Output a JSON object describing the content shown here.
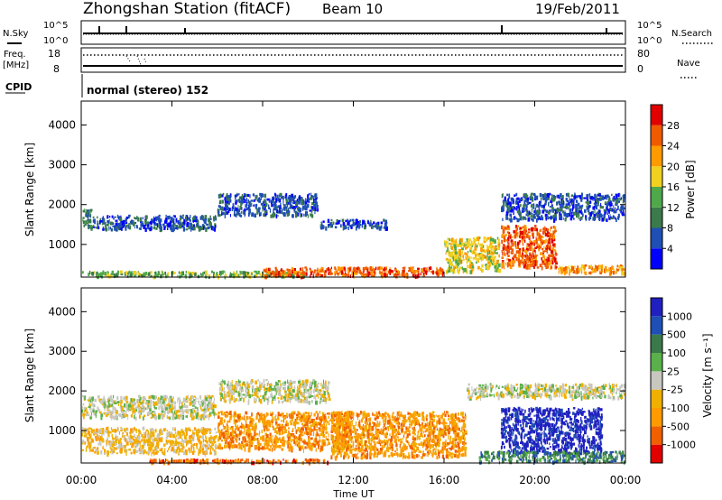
{
  "header": {
    "title": "Zhongshan Station (fitACF)",
    "beam": "Beam 10",
    "date": "19/Feb/2011"
  },
  "status": {
    "nsky_label": "N.Sky",
    "nsky_ticks": [
      "10^5",
      "10^0"
    ],
    "nsearch_label": "N.Search",
    "nsearch_ticks": [
      "10^5",
      "10^0"
    ],
    "freq_label": "Freq.",
    "freq_unit": "[MHz]",
    "freq_ticks": [
      "18",
      "8"
    ],
    "nave_label": "Nave",
    "nave_ticks": [
      "80",
      "0"
    ],
    "cpid_label": "CPID",
    "cpid_value": "normal (stereo) 152"
  },
  "chart_data": [
    {
      "type": "heatmap",
      "name": "power",
      "ylabel": "Slant Range [km]",
      "yticks": [
        "4000",
        "3000",
        "2000",
        "1000"
      ],
      "ylim": [
        180,
        4600
      ],
      "xlim": [
        0,
        24
      ],
      "colorbar": {
        "label": "Power [dB]",
        "ticks": [
          "28",
          "24",
          "20",
          "16",
          "12",
          "8",
          "4"
        ],
        "colors": [
          "#0000ff",
          "#1f4fb4",
          "#3b7a4a",
          "#4fa84a",
          "#f0d020",
          "#ff9a00",
          "#f05a00",
          "#e00000"
        ]
      },
      "regions": [
        {
          "t": [
            0.0,
            0.5
          ],
          "r": [
            1400,
            1900
          ],
          "level": 2
        },
        {
          "t": [
            0.5,
            6.0
          ],
          "r": [
            1350,
            1750
          ],
          "level": 1
        },
        {
          "t": [
            6.0,
            10.5
          ],
          "r": [
            1700,
            2300
          ],
          "level": 1
        },
        {
          "t": [
            10.5,
            13.5
          ],
          "r": [
            1400,
            1650
          ],
          "level": 1
        },
        {
          "t": [
            0.0,
            10.0
          ],
          "r": [
            180,
            350
          ],
          "level": 3
        },
        {
          "t": [
            8.0,
            16.0
          ],
          "r": [
            180,
            450
          ],
          "level": 6
        },
        {
          "t": [
            16.0,
            18.5
          ],
          "r": [
            300,
            1200
          ],
          "level": 4
        },
        {
          "t": [
            18.5,
            24.0
          ],
          "r": [
            1600,
            2300
          ],
          "level": 1
        },
        {
          "t": [
            18.5,
            21.0
          ],
          "r": [
            400,
            1500
          ],
          "level": 6
        },
        {
          "t": [
            21.0,
            24.0
          ],
          "r": [
            250,
            500
          ],
          "level": 5
        }
      ]
    },
    {
      "type": "heatmap",
      "name": "velocity",
      "xlabel": "Time UT",
      "xticks": [
        "00:00",
        "04:00",
        "08:00",
        "12:00",
        "16:00",
        "20:00",
        "00:00"
      ],
      "ylabel": "Slant Range [km]",
      "yticks": [
        "4000",
        "3000",
        "2000",
        "1000"
      ],
      "ylim": [
        180,
        4600
      ],
      "xlim": [
        0,
        24
      ],
      "colorbar": {
        "label": "Velocity [m s⁻¹]",
        "ticks": [
          "1000",
          "500",
          "100",
          "25",
          "-25",
          "-100",
          "-500",
          "-1000"
        ],
        "colors": [
          "#e00000",
          "#f06000",
          "#ff9a00",
          "#f0b000",
          "#c8c8c0",
          "#5ab04a",
          "#3a7a4a",
          "#1f4fb4",
          "#2020c0"
        ]
      },
      "regions": [
        {
          "t": [
            0.0,
            6.0
          ],
          "r": [
            1300,
            1900
          ],
          "level": 4
        },
        {
          "t": [
            6.0,
            11.0
          ],
          "r": [
            1700,
            2300
          ],
          "level": 4
        },
        {
          "t": [
            0.0,
            6.0
          ],
          "r": [
            400,
            1100
          ],
          "level": 3
        },
        {
          "t": [
            6.0,
            12.0
          ],
          "r": [
            500,
            1500
          ],
          "level": 2
        },
        {
          "t": [
            3.0,
            11.0
          ],
          "r": [
            180,
            300
          ],
          "level": 1
        },
        {
          "t": [
            11.0,
            17.0
          ],
          "r": [
            300,
            1500
          ],
          "level": 2
        },
        {
          "t": [
            17.0,
            24.0
          ],
          "r": [
            1800,
            2200
          ],
          "level": 4
        },
        {
          "t": [
            18.5,
            23.0
          ],
          "r": [
            400,
            1600
          ],
          "level": 8
        },
        {
          "t": [
            17.5,
            24.0
          ],
          "r": [
            180,
            500
          ],
          "level": 6
        }
      ]
    }
  ]
}
